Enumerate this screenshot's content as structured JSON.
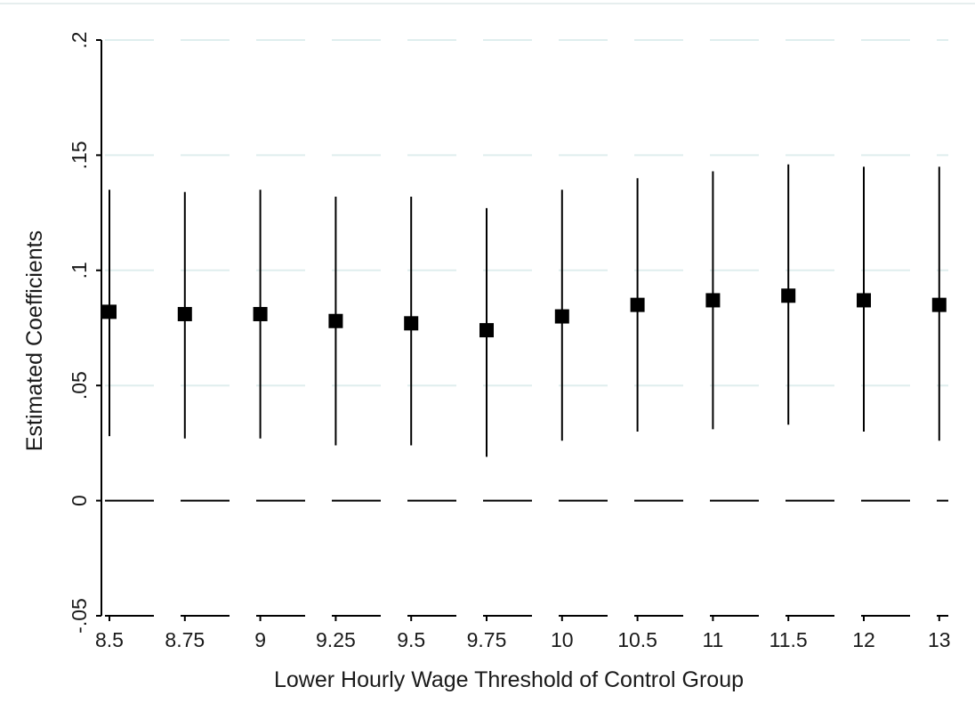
{
  "chart_data": {
    "type": "scatter",
    "title": "",
    "xlabel": "Lower Hourly Wage Threshold of Control Group",
    "ylabel": "Estimated Coefficients",
    "categories": [
      "8.5",
      "8.75",
      "9",
      "9.25",
      "9.5",
      "9.75",
      "10",
      "10.5",
      "11",
      "11.5",
      "12",
      "13"
    ],
    "series": [
      {
        "values": [
          0.082,
          0.081,
          0.081,
          0.078,
          0.077,
          0.074,
          0.08,
          0.085,
          0.087,
          0.089,
          0.087,
          0.085
        ],
        "ci_low": [
          0.028,
          0.027,
          0.027,
          0.024,
          0.024,
          0.019,
          0.026,
          0.03,
          0.031,
          0.033,
          0.03,
          0.026
        ],
        "ci_high": [
          0.135,
          0.134,
          0.135,
          0.132,
          0.132,
          0.127,
          0.135,
          0.14,
          0.143,
          0.146,
          0.145,
          0.145
        ]
      }
    ],
    "yticks": [
      -0.05,
      0,
      0.05,
      0.1,
      0.15,
      0.2
    ],
    "ytick_labels": [
      "-.05",
      "0",
      ".05",
      ".1",
      ".15",
      ".2"
    ],
    "ylim": [
      -0.05,
      0.2
    ],
    "reference_lines": [
      0,
      -0.05
    ],
    "grid": true,
    "marker": "square",
    "colors": {
      "marks": "#000000",
      "grid": "#dfeeee",
      "background": "#ffffff"
    }
  }
}
